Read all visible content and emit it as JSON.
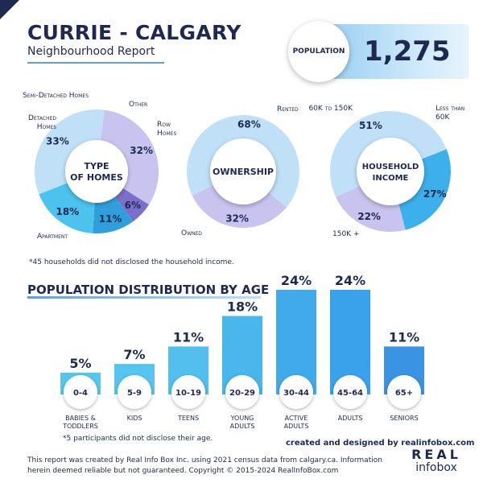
{
  "header": {
    "title": "CURRIE - CALGARY",
    "subtitle": "Neighbourhood Report"
  },
  "population": {
    "label": "POPULATION",
    "value": "1,275"
  },
  "colors": {
    "navy": "#1d2951",
    "blue": "#3bb0ea",
    "light_blue": "#bfe0f7",
    "purple": "#c9c3ef",
    "dark_purple": "#7b6fc9"
  },
  "income_footnote": "*45 households did not disclosed the household income.",
  "age_section": {
    "title": "POPULATION DISTRIBUTION BY AGE",
    "footnote": "*5 participants did not disclose their age."
  },
  "footer": {
    "credit": "created and designed by realinfobox.com",
    "disclaimer_line1": "This report was created by Real Info Box Inc. using 2021 census data from calgary.ca. Information",
    "disclaimer_line2": "herein deemed reliable but not guaranteed. Copyright © 2015-2024 RealInfoBox.com",
    "logo_top": "REAL",
    "logo_bottom": "infobox"
  },
  "chart_data": [
    {
      "type": "pie",
      "title": "TYPE OF HOMES",
      "slices": [
        {
          "label": "Apartment",
          "value": 33,
          "text": "33%",
          "color": "#bfe0f7"
        },
        {
          "label": "Detached Homes",
          "value": 32,
          "text": "32%",
          "color": "#c9c3ef"
        },
        {
          "label": "Semi-Detached Homes",
          "value": 6,
          "text": "6%",
          "color": "#7b6fc9"
        },
        {
          "label": "Other",
          "value": 11,
          "text": "11%",
          "color": "#2f9fdc"
        },
        {
          "label": "Row Homes",
          "value": 18,
          "text": "18%",
          "color": "#4cc3ee"
        }
      ]
    },
    {
      "type": "pie",
      "title": "OWNERSHIP",
      "slices": [
        {
          "label": "Owned",
          "value": 68,
          "text": "68%",
          "color": "#bfe0f7"
        },
        {
          "label": "Rented",
          "value": 32,
          "text": "32%",
          "color": "#c9c3ef"
        }
      ]
    },
    {
      "type": "pie",
      "title": "HOUSEHOLD INCOME",
      "slices": [
        {
          "label": "150K +",
          "value": 51,
          "text": "51%",
          "color": "#bfe0f7"
        },
        {
          "label": "60K to 150K",
          "value": 27,
          "text": "27%",
          "color": "#3bb0ea"
        },
        {
          "label": "Less than 60K",
          "value": 22,
          "text": "22%",
          "color": "#c9c3ef"
        }
      ]
    },
    {
      "type": "bar",
      "title": "POPULATION DISTRIBUTION BY AGE",
      "categories": [
        "0-4",
        "5-9",
        "10-19",
        "20-29",
        "30-44",
        "45-64",
        "65+"
      ],
      "group_labels": [
        "BABIES &\nTODDLERS",
        "KIDS",
        "TEENS",
        "YOUNG\nADULTS",
        "ACTIVE\nADULTS",
        "ADULTS",
        "SENIORS"
      ],
      "values": [
        5,
        7,
        11,
        18,
        24,
        24,
        11
      ],
      "value_labels": [
        "5%",
        "7%",
        "11%",
        "18%",
        "24%",
        "24%",
        "11%"
      ],
      "ylim": [
        0,
        24
      ]
    }
  ]
}
